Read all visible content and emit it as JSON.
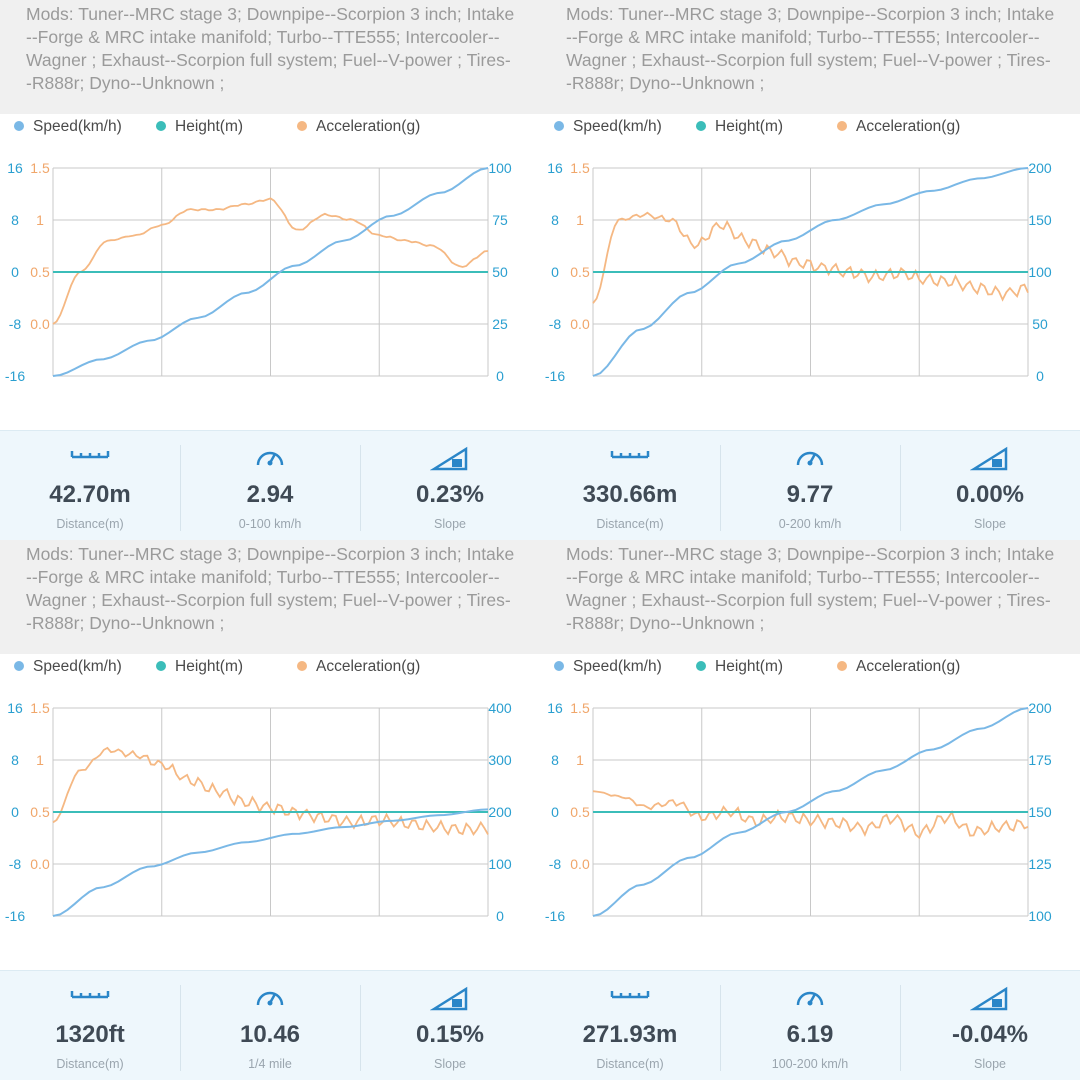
{
  "colors": {
    "speed": "#7ab8e6",
    "height": "#3bbdb9",
    "accel": "#f5b883",
    "icon": "#2a86c8"
  },
  "legend": {
    "speed": "Speed(km/h)",
    "height": "Height(m)",
    "accel": "Acceleration(g)"
  },
  "icons": {
    "distance": "ruler-icon",
    "time": "speedometer-icon",
    "slope": "slope-icon"
  },
  "panels": [
    {
      "mods": "Mods: Tuner--MRC stage 3; Downpipe--Scorpion 3 inch; Intake--Forge & MRC intake manifold; Turbo--TTE555; Intercooler--Wagner ; Exhaust--Scorpion full system; Fuel--V-power ; Tires--R888r; Dyno--Unknown ;",
      "stats": {
        "distance": "42.70m",
        "distance_label": "Distance(m)",
        "time": "2.94",
        "time_label": "0-100 km/h",
        "slope": "0.23%",
        "slope_label": "Slope"
      },
      "chart_data": {
        "type": "line",
        "height_axis": {
          "ticks": [
            "16",
            "8",
            "0",
            "-8",
            "-16"
          ],
          "range": [
            -16,
            16
          ]
        },
        "accel_axis": {
          "ticks": [
            "1.5",
            "1",
            "0.5",
            "0.0"
          ],
          "range": [
            -0.5,
            1.5
          ]
        },
        "speed_axis": {
          "ticks": [
            "100",
            "75",
            "50",
            "25",
            "0"
          ],
          "range": [
            0,
            100
          ]
        },
        "series": [
          {
            "name": "Speed(km/h)",
            "values": [
              0,
              8,
              17,
              28,
              40,
              53,
              65,
              77,
              88,
              100
            ]
          },
          {
            "name": "Height(m)",
            "values": [
              0,
              0,
              0,
              0,
              0,
              0,
              0,
              0,
              0,
              0
            ]
          },
          {
            "name": "Acceleration(g)",
            "values": [
              0.0,
              0.5,
              0.8,
              0.85,
              0.95,
              1.1,
              1.1,
              1.15,
              1.2,
              0.9,
              1.05,
              1.0,
              0.85,
              0.8,
              0.75,
              0.55,
              0.7
            ]
          }
        ]
      }
    },
    {
      "mods": "Mods: Tuner--MRC stage 3; Downpipe--Scorpion 3 inch; Intake--Forge & MRC intake manifold; Turbo--TTE555; Intercooler--Wagner ; Exhaust--Scorpion full system; Fuel--V-power ; Tires--R888r; Dyno--Unknown ;",
      "stats": {
        "distance": "330.66m",
        "distance_label": "Distance(m)",
        "time": "9.77",
        "time_label": "0-200 km/h",
        "slope": "0.00%",
        "slope_label": "Slope"
      },
      "chart_data": {
        "type": "line",
        "height_axis": {
          "ticks": [
            "16",
            "8",
            "0",
            "-8",
            "-16"
          ],
          "range": [
            -16,
            16
          ]
        },
        "accel_axis": {
          "ticks": [
            "1.5",
            "1",
            "0.5",
            "0.0"
          ],
          "range": [
            -0.5,
            1.5
          ]
        },
        "speed_axis": {
          "ticks": [
            "200",
            "150",
            "100",
            "50",
            "0"
          ],
          "range": [
            0,
            200
          ]
        },
        "series": [
          {
            "name": "Speed(km/h)",
            "values": [
              0,
              45,
              80,
              108,
              130,
              150,
              165,
              178,
              190,
              200
            ]
          },
          {
            "name": "Height(m)",
            "values": [
              0,
              0,
              0,
              0,
              0,
              0,
              0,
              0,
              0,
              0
            ]
          },
          {
            "name": "Acceleration(g)",
            "values": [
              0.2,
              1.0,
              1.05,
              1.0,
              0.75,
              0.95,
              0.8,
              0.7,
              0.6,
              0.55,
              0.5,
              0.45,
              0.48,
              0.42,
              0.4,
              0.35,
              0.3,
              0.35
            ]
          }
        ]
      }
    },
    {
      "mods": "Mods: Tuner--MRC stage 3; Downpipe--Scorpion 3 inch; Intake--Forge & MRC intake manifold; Turbo--TTE555; Intercooler--Wagner ; Exhaust--Scorpion full system; Fuel--V-power ; Tires--R888r; Dyno--Unknown ;",
      "stats": {
        "distance": "1320ft",
        "distance_label": "Distance(m)",
        "time": "10.46",
        "time_label": "1/4 mile",
        "slope": "0.15%",
        "slope_label": "Slope"
      },
      "chart_data": {
        "type": "line",
        "height_axis": {
          "ticks": [
            "16",
            "8",
            "0",
            "-8",
            "-16"
          ],
          "range": [
            -16,
            16
          ]
        },
        "accel_axis": {
          "ticks": [
            "1.5",
            "1",
            "0.5",
            "0.0"
          ],
          "range": [
            -0.5,
            1.5
          ]
        },
        "speed_axis": {
          "ticks": [
            "400",
            "300",
            "200",
            "100",
            "0"
          ],
          "range": [
            0,
            400
          ]
        },
        "series": [
          {
            "name": "Speed(km/h)",
            "values": [
              0,
              55,
              95,
              122,
              142,
              158,
              171,
              183,
              194,
              205
            ]
          },
          {
            "name": "Height(m)",
            "values": [
              0,
              0,
              0,
              0,
              0,
              0,
              0,
              0,
              0,
              0
            ]
          },
          {
            "name": "Acceleration(g)",
            "values": [
              0.4,
              0.9,
              1.1,
              1.05,
              0.95,
              0.8,
              0.7,
              0.6,
              0.55,
              0.5,
              0.45,
              0.4,
              0.42,
              0.38,
              0.35,
              0.33,
              0.35
            ]
          }
        ]
      }
    },
    {
      "mods": "Mods: Tuner--MRC stage 3; Downpipe--Scorpion 3 inch; Intake--Forge & MRC intake manifold; Turbo--TTE555; Intercooler--Wagner ; Exhaust--Scorpion full system; Fuel--V-power ; Tires--R888r; Dyno--Unknown ;",
      "stats": {
        "distance": "271.93m",
        "distance_label": "Distance(m)",
        "time": "6.19",
        "time_label": "100-200 km/h",
        "slope": "-0.04%",
        "slope_label": "Slope"
      },
      "chart_data": {
        "type": "line",
        "height_axis": {
          "ticks": [
            "16",
            "8",
            "0",
            "-8",
            "-16"
          ],
          "range": [
            -16,
            16
          ]
        },
        "accel_axis": {
          "ticks": [
            "1.5",
            "1",
            "0.5",
            "0.0"
          ],
          "range": [
            -0.5,
            1.5
          ]
        },
        "speed_axis": {
          "ticks": [
            "200",
            "175",
            "150",
            "125",
            "100"
          ],
          "range": [
            100,
            200
          ]
        },
        "series": [
          {
            "name": "Speed(km/h)",
            "values": [
              100,
              115,
              128,
              140,
              150,
              160,
              170,
              180,
              190,
              200
            ]
          },
          {
            "name": "Height(m)",
            "values": [
              0,
              0,
              0,
              0,
              0,
              0,
              0,
              0,
              0,
              0
            ]
          },
          {
            "name": "Acceleration(g)",
            "values": [
              0.7,
              0.65,
              0.55,
              0.6,
              0.45,
              0.5,
              0.4,
              0.45,
              0.42,
              0.4,
              0.35,
              0.45,
              0.3,
              0.45,
              0.3,
              0.35,
              0.38
            ]
          }
        ]
      }
    }
  ]
}
